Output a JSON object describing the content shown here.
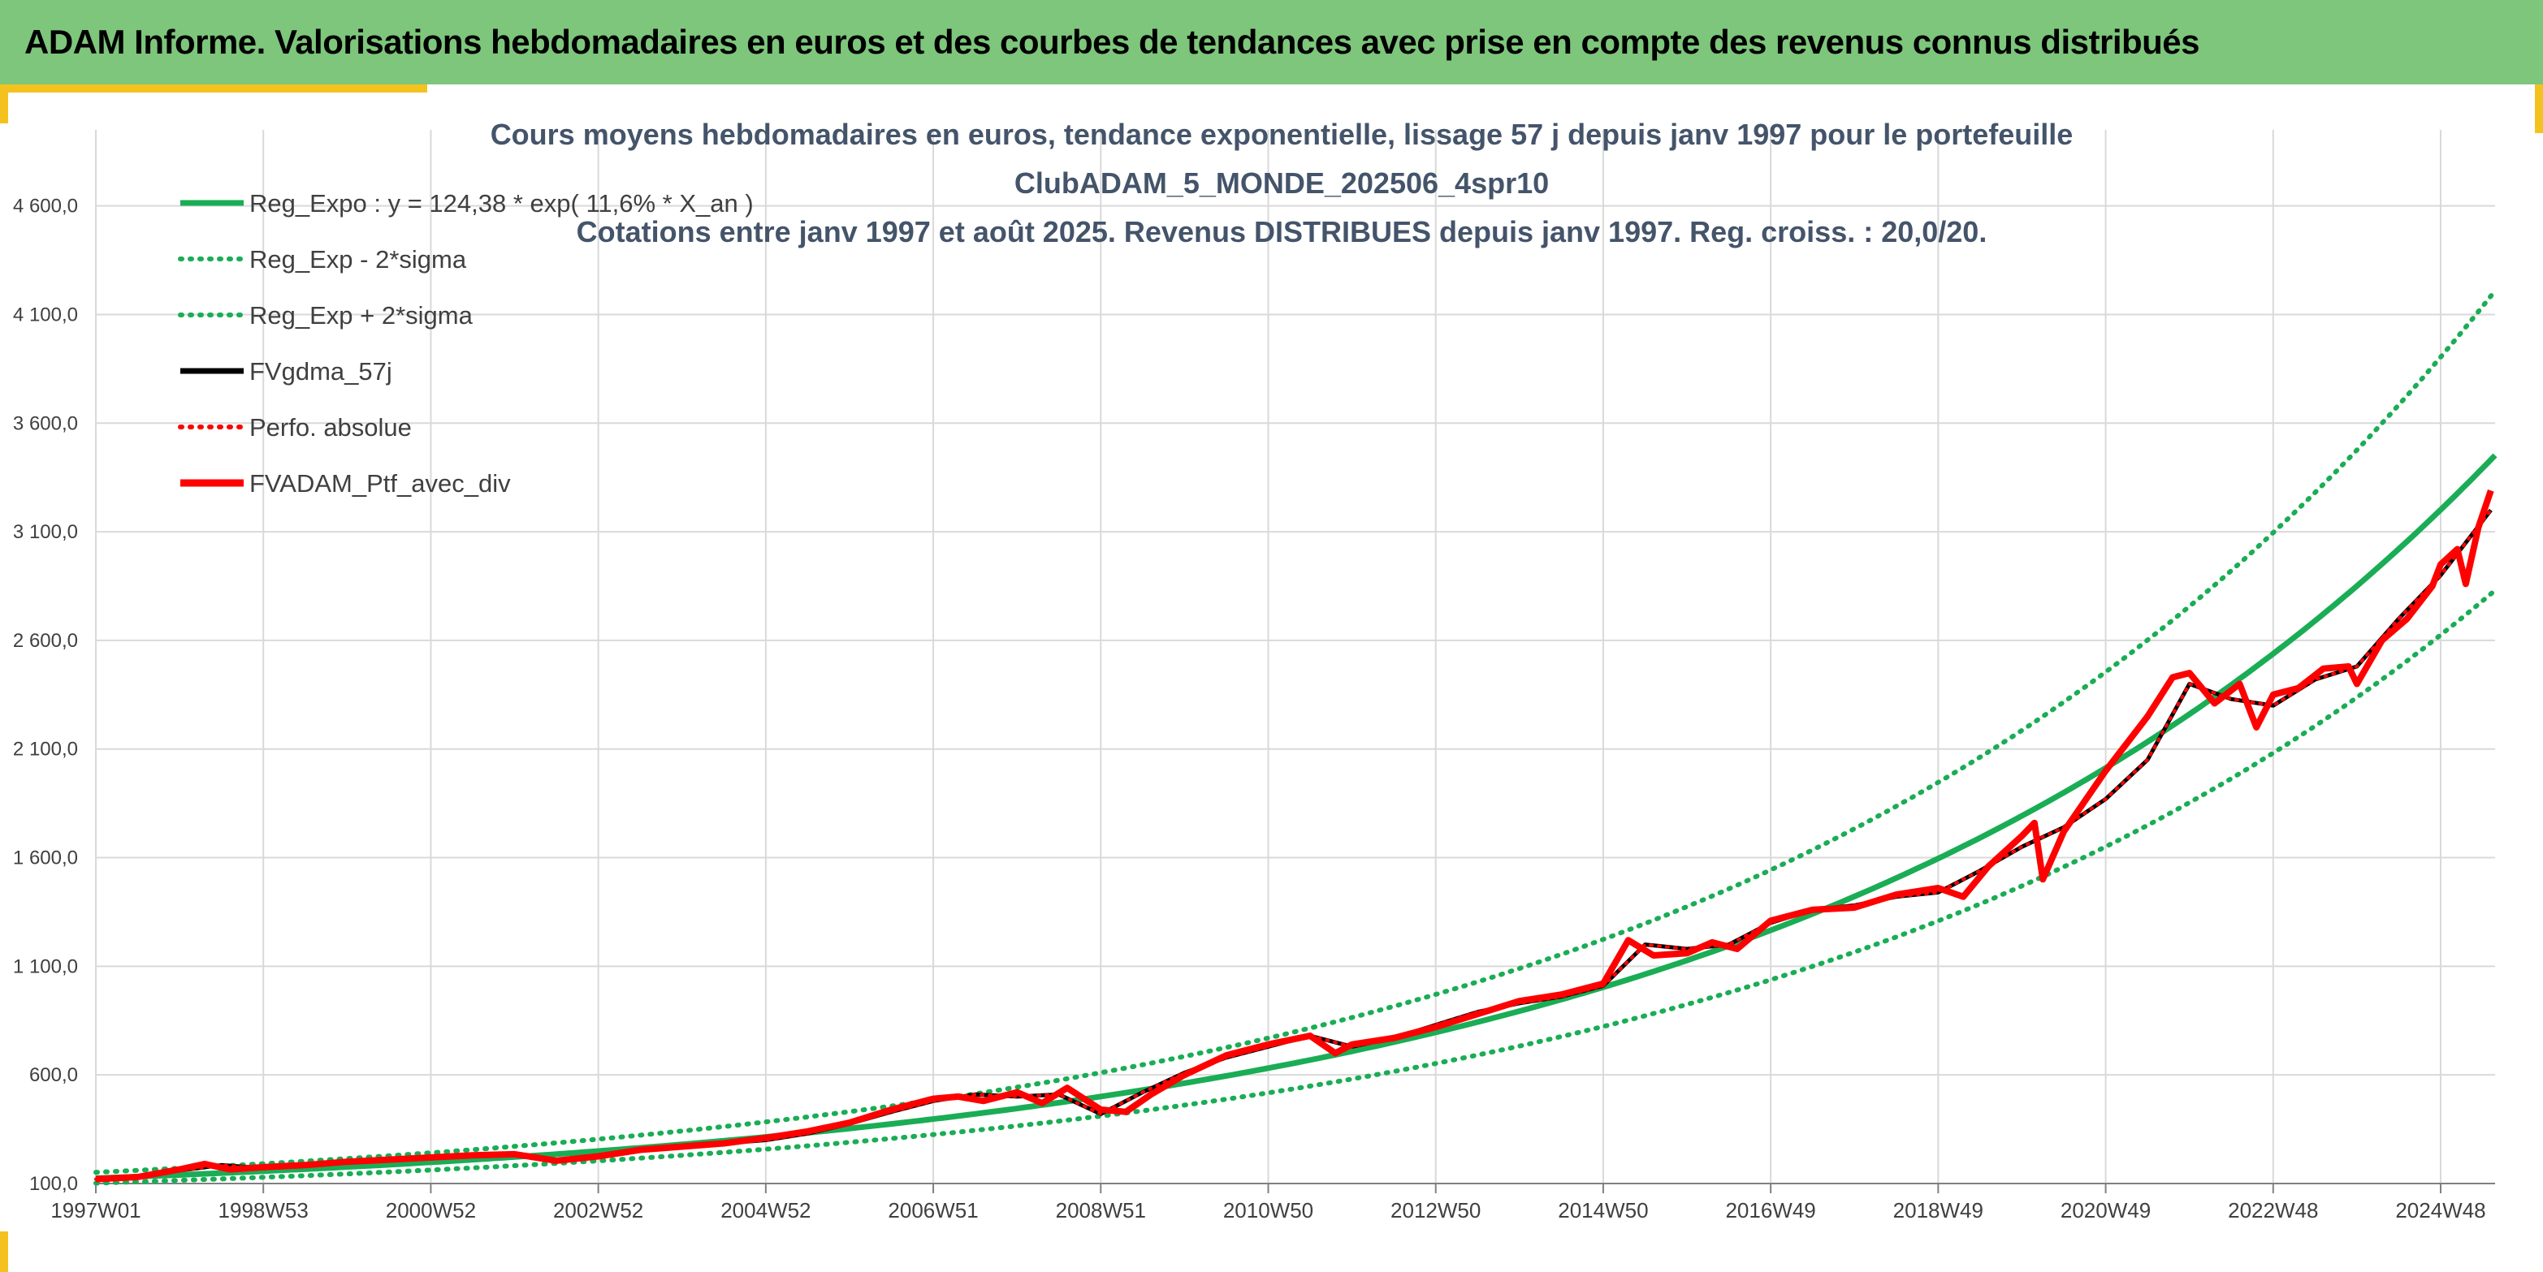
{
  "banner": {
    "title": "ADAM Informe. Valorisations hebdomadaires en euros et des courbes de tendances avec prise en compte des revenus connus distribués"
  },
  "colors": {
    "banner_bg": "#7dc67b",
    "trend_green": "#1aad55",
    "series_red": "#ff0000",
    "series_black": "#000000",
    "corner_yellow": "#f4c21f",
    "title_text": "#44546a"
  },
  "chart_data": {
    "type": "line",
    "title_lines": [
      "Cours moyens hebdomadaires en euros, tendance exponentielle, lissage 57 j depuis janv 1997 pour le portefeuille",
      "ClubADAM_5_MONDE_202506_4spr10",
      "Cotations entre janv 1997 et août 2025. Revenus DISTRIBUES depuis janv 1997. Reg. croiss. : 20,0/20."
    ],
    "xlabel": "",
    "ylabel": "",
    "x_tick_labels": [
      "1997W01",
      "1998W53",
      "2000W52",
      "2002W52",
      "2004W52",
      "2006W51",
      "2008W51",
      "2010W50",
      "2012W50",
      "2014W50",
      "2016W49",
      "2018W49",
      "2020W49",
      "2022W48",
      "2024W48"
    ],
    "x_tick_years": [
      1997.0,
      1999.0,
      2001.0,
      2003.0,
      2005.0,
      2007.0,
      2009.0,
      2011.0,
      2013.0,
      2015.0,
      2017.0,
      2019.0,
      2021.0,
      2023.0,
      2025.0
    ],
    "x_range": [
      1997.0,
      2025.65
    ],
    "y_ticks": [
      100,
      600,
      1100,
      1600,
      2100,
      2600,
      3100,
      3600,
      4100,
      4600
    ],
    "y_tick_labels": [
      "100,0",
      "600,0",
      "1 100,0",
      "1 600,0",
      "2 100,0",
      "2 600,0",
      "3 100,0",
      "3 600,0",
      "4 100,0",
      "4 600,0"
    ],
    "ylim": [
      100,
      4950
    ],
    "grid": true,
    "legend_position": "top-left",
    "regression": {
      "a": 124.38,
      "growth_rate": 0.116,
      "band_factor": 0.82
    },
    "series": [
      {
        "name": "Reg_Expo : y = 124,38 * exp( 11,6% *  X_an )",
        "kind": "trend",
        "style": "solid",
        "color": "#1aad55"
      },
      {
        "name": "Reg_Exp - 2*sigma",
        "kind": "trend_low",
        "style": "dotted",
        "color": "#1aad55"
      },
      {
        "name": "Reg_Exp + 2*sigma",
        "kind": "trend_high",
        "style": "dotted",
        "color": "#1aad55"
      },
      {
        "name": "FVgdma_57j",
        "kind": "data",
        "style": "solid",
        "color": "#000000",
        "x": [
          1997.0,
          1997.5,
          1998.0,
          1998.5,
          1999.0,
          1999.5,
          2000.0,
          2000.5,
          2001.0,
          2001.5,
          2002.0,
          2002.5,
          2003.0,
          2003.5,
          2004.0,
          2004.5,
          2005.0,
          2005.5,
          2006.0,
          2006.5,
          2007.0,
          2007.5,
          2008.0,
          2008.5,
          2009.0,
          2009.5,
          2010.0,
          2010.5,
          2011.0,
          2011.5,
          2012.0,
          2012.5,
          2013.0,
          2013.5,
          2014.0,
          2014.5,
          2015.0,
          2015.5,
          2016.0,
          2016.5,
          2017.0,
          2017.5,
          2018.0,
          2018.5,
          2019.0,
          2019.5,
          2020.0,
          2020.5,
          2021.0,
          2021.5,
          2022.0,
          2022.5,
          2023.0,
          2023.5,
          2024.0,
          2024.5,
          2025.0,
          2025.6
        ],
        "y": [
          120,
          130,
          160,
          185,
          170,
          185,
          200,
          215,
          215,
          230,
          230,
          210,
          225,
          255,
          270,
          285,
          300,
          330,
          375,
          430,
          480,
          510,
          500,
          510,
          420,
          520,
          610,
          680,
          730,
          780,
          730,
          770,
          830,
          890,
          930,
          960,
          1010,
          1200,
          1180,
          1200,
          1300,
          1360,
          1380,
          1420,
          1440,
          1540,
          1650,
          1740,
          1870,
          2050,
          2400,
          2330,
          2300,
          2420,
          2480,
          2700,
          2900,
          3200
        ]
      },
      {
        "name": "Perfo. absolue",
        "kind": "data",
        "style": "dotted",
        "color": "#ff0000",
        "x": [
          1997.0,
          1997.5,
          1998.0,
          1998.5,
          1999.0,
          1999.5,
          2000.0,
          2000.5,
          2001.0,
          2001.5,
          2002.0,
          2002.5,
          2003.0,
          2003.5,
          2004.0,
          2004.5,
          2005.0,
          2005.5,
          2006.0,
          2006.5,
          2007.0,
          2007.5,
          2008.0,
          2008.5,
          2009.0,
          2009.5,
          2010.0,
          2010.5,
          2011.0,
          2011.5,
          2012.0,
          2012.5,
          2013.0,
          2013.5,
          2014.0,
          2014.5,
          2015.0,
          2015.5,
          2016.0,
          2016.5,
          2017.0,
          2017.5,
          2018.0,
          2018.5,
          2019.0,
          2019.5,
          2020.0,
          2020.5,
          2021.0,
          2021.5,
          2022.0,
          2022.5,
          2023.0,
          2023.5,
          2024.0,
          2024.5,
          2025.0,
          2025.6
        ],
        "y": [
          120,
          130,
          160,
          185,
          170,
          185,
          200,
          215,
          215,
          230,
          230,
          210,
          225,
          255,
          270,
          285,
          300,
          330,
          375,
          430,
          480,
          510,
          500,
          510,
          420,
          520,
          610,
          680,
          730,
          780,
          730,
          770,
          830,
          890,
          930,
          960,
          1010,
          1200,
          1180,
          1200,
          1300,
          1360,
          1380,
          1420,
          1440,
          1540,
          1650,
          1740,
          1870,
          2050,
          2400,
          2330,
          2300,
          2420,
          2480,
          2700,
          2900,
          3200
        ]
      },
      {
        "name": "FVADAM_Ptf_avec_div",
        "kind": "data",
        "style": "solid",
        "color": "#ff0000",
        "x": [
          1997.0,
          1997.5,
          1998.0,
          1998.3,
          1998.6,
          1999.0,
          1999.5,
          2000.0,
          2000.5,
          2001.0,
          2001.5,
          2002.0,
          2002.5,
          2003.0,
          2003.5,
          2004.0,
          2004.5,
          2005.0,
          2005.5,
          2006.0,
          2006.5,
          2007.0,
          2007.3,
          2007.6,
          2008.0,
          2008.3,
          2008.6,
          2009.0,
          2009.3,
          2009.6,
          2010.0,
          2010.5,
          2011.0,
          2011.5,
          2011.8,
          2012.0,
          2012.5,
          2013.0,
          2013.5,
          2014.0,
          2014.5,
          2015.0,
          2015.3,
          2015.6,
          2016.0,
          2016.3,
          2016.6,
          2017.0,
          2017.5,
          2018.0,
          2018.5,
          2019.0,
          2019.3,
          2019.6,
          2020.0,
          2020.15,
          2020.25,
          2020.5,
          2021.0,
          2021.5,
          2021.8,
          2022.0,
          2022.3,
          2022.6,
          2022.8,
          2023.0,
          2023.3,
          2023.6,
          2023.9,
          2024.0,
          2024.3,
          2024.6,
          2024.9,
          2025.0,
          2025.2,
          2025.3,
          2025.45,
          2025.6
        ],
        "y": [
          120,
          130,
          165,
          190,
          165,
          175,
          185,
          200,
          210,
          220,
          230,
          235,
          205,
          225,
          255,
          270,
          285,
          310,
          340,
          380,
          440,
          490,
          500,
          480,
          520,
          470,
          540,
          440,
          430,
          510,
          600,
          690,
          740,
          780,
          700,
          740,
          770,
          820,
          880,
          940,
          970,
          1020,
          1220,
          1150,
          1160,
          1210,
          1180,
          1310,
          1360,
          1370,
          1430,
          1460,
          1420,
          1560,
          1700,
          1760,
          1500,
          1720,
          2000,
          2250,
          2430,
          2450,
          2310,
          2400,
          2200,
          2350,
          2380,
          2470,
          2480,
          2400,
          2600,
          2700,
          2850,
          2950,
          3020,
          2860,
          3120,
          3290
        ]
      }
    ]
  }
}
